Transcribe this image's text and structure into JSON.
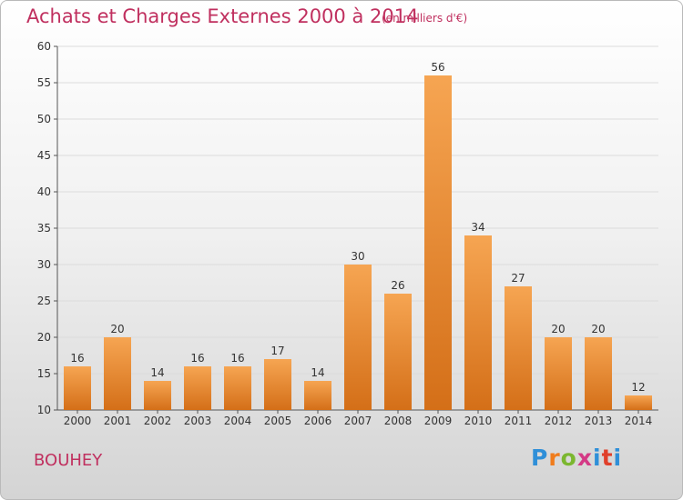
{
  "header": {
    "title": "Achats et Charges Externes 2000 à 2014",
    "subtitle": "(en milliers d'€)"
  },
  "footer": {
    "commune": "BOUHEY",
    "brand": [
      "P",
      "r",
      "o",
      "x",
      "i",
      "t",
      "i"
    ]
  },
  "colors": {
    "title": "#c0305f",
    "bar_light": "#f6a552",
    "bar_dark": "#d46f18",
    "grid": "#dcdcdc"
  },
  "chart_data": {
    "type": "bar",
    "title": "Achats et Charges Externes 2000 à 2014",
    "subtitle": "(en milliers d'€)",
    "categories": [
      "2000",
      "2001",
      "2002",
      "2003",
      "2004",
      "2005",
      "2006",
      "2007",
      "2008",
      "2009",
      "2010",
      "2011",
      "2012",
      "2013",
      "2014"
    ],
    "values": [
      16,
      20,
      14,
      16,
      16,
      17,
      14,
      30,
      26,
      56,
      34,
      27,
      20,
      20,
      12
    ],
    "ylim": [
      10,
      60
    ],
    "yticks": [
      10,
      15,
      20,
      25,
      30,
      35,
      40,
      45,
      50,
      55,
      60
    ],
    "grid": true,
    "data_labels": true
  }
}
